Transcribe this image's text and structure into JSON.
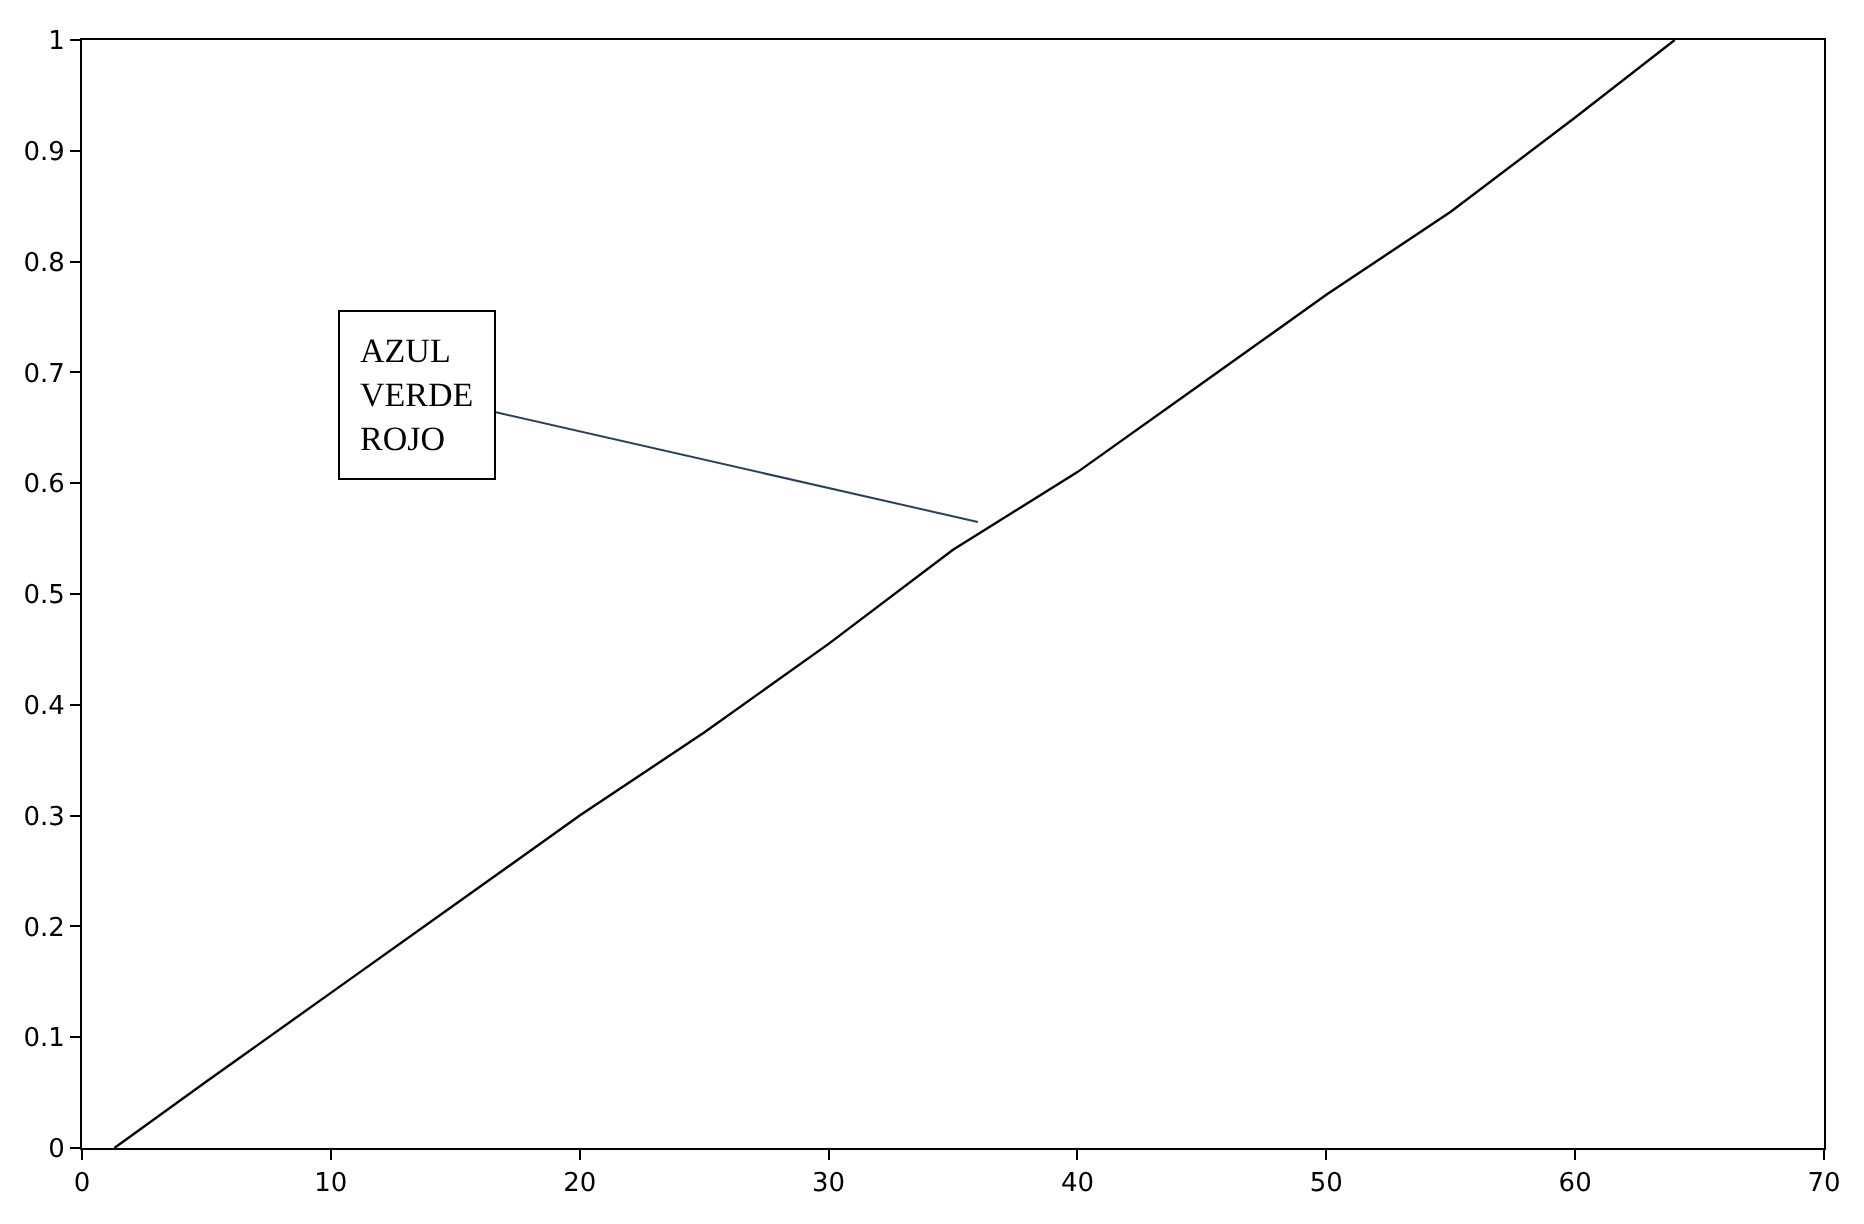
{
  "chart_data": {
    "type": "line",
    "x": [
      1.3,
      5,
      10,
      15,
      20,
      25,
      30,
      35,
      40,
      45,
      50,
      55,
      60,
      64
    ],
    "values": [
      0,
      0.06,
      0.14,
      0.22,
      0.3,
      0.375,
      0.455,
      0.54,
      0.61,
      0.69,
      0.77,
      0.845,
      0.93,
      1
    ],
    "color": "#000000",
    "xlim": [
      0,
      70
    ],
    "xticks": [
      0,
      10,
      20,
      30,
      40,
      50,
      60,
      70
    ],
    "ylim": [
      0,
      1
    ],
    "yticks": [
      0,
      0.1,
      0.2,
      0.3,
      0.4,
      0.5,
      0.6,
      0.7,
      0.8,
      0.9,
      1
    ],
    "annotations": [
      {
        "text": "AZUL\nVERDE\nROJO",
        "x": 36,
        "y": 0.565
      }
    ]
  }
}
